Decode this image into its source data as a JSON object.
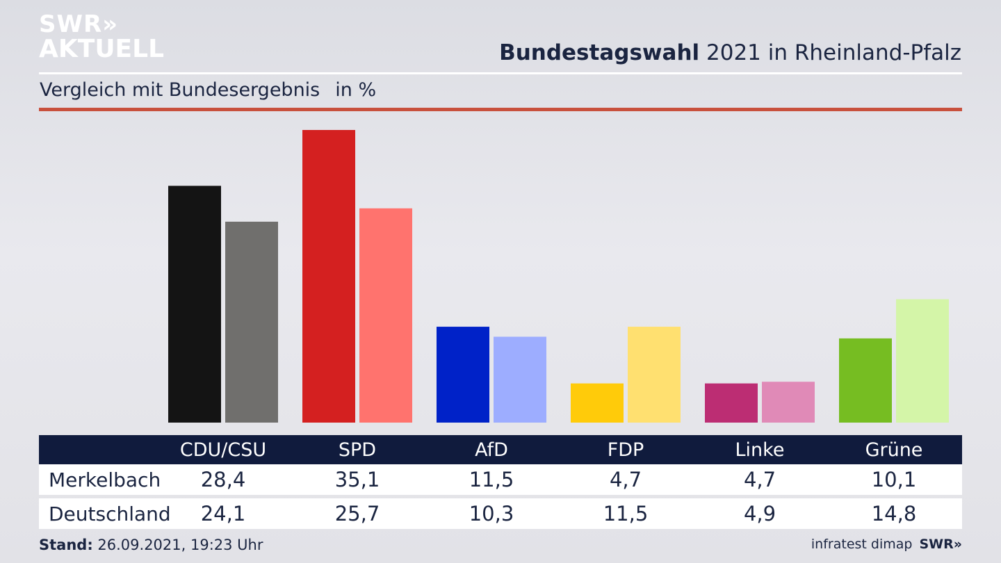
{
  "brand": {
    "logo_line1": "SWR»",
    "logo_line2": "AKTUELL"
  },
  "header": {
    "title_bold": "Bundestagswahl",
    "title_rest": " 2021 in Rheinland-Pfalz",
    "subtitle": "Vergleich mit Bundesergebnis",
    "unit": "in %"
  },
  "footer": {
    "stand_label": "Stand:",
    "stand_value": " 26.09.2021, 19:23 Uhr",
    "source": "infratest dimap",
    "source_logo": "SWR»"
  },
  "colors": {
    "title_navy": "#1a2440",
    "accent_red_rule": "#c8503d",
    "table_header_bg": "#101b3d"
  },
  "chart_data": {
    "type": "bar",
    "categories": [
      "CDU/CSU",
      "SPD",
      "AfD",
      "FDP",
      "Linke",
      "Grüne"
    ],
    "series": [
      {
        "name": "Merkelbach",
        "values": [
          28.4,
          35.1,
          11.5,
          4.7,
          4.7,
          10.1
        ],
        "colors": [
          "#141414",
          "#d42020",
          "#0022c8",
          "#ffcb0a",
          "#bc2d73",
          "#76bd22"
        ]
      },
      {
        "name": "Deutschland",
        "values": [
          24.1,
          25.7,
          10.3,
          11.5,
          4.9,
          14.8
        ],
        "colors": [
          "#706f6d",
          "#ff736e",
          "#9dadff",
          "#ffe070",
          "#e08ab7",
          "#d4f5a8"
        ]
      }
    ],
    "ylim": [
      0,
      35.1
    ],
    "grid": false,
    "legend": "table-below"
  }
}
